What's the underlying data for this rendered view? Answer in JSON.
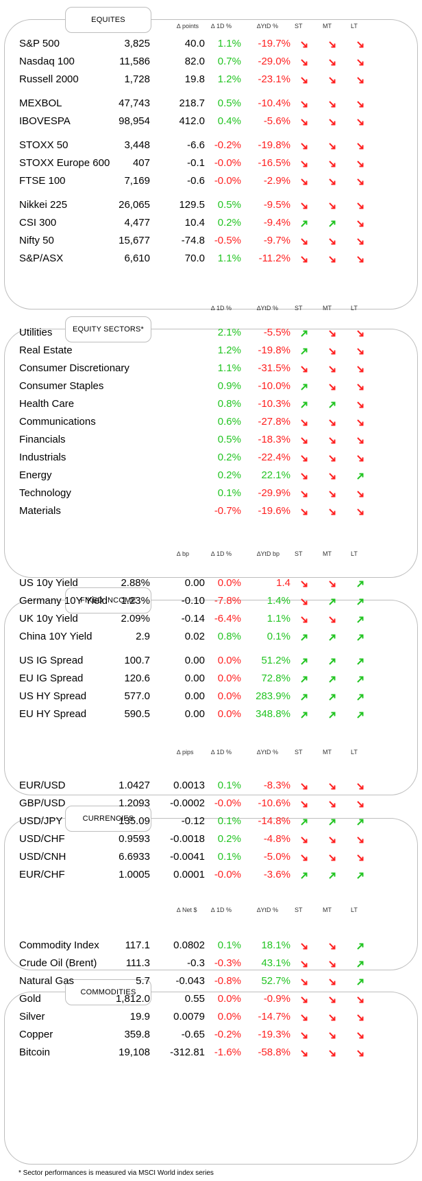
{
  "colors": {
    "up": "#22c422",
    "down": "#ff2020"
  },
  "sections": [
    {
      "id": "equities",
      "title": "EQUITES",
      "has_value": true,
      "headers": {
        "chg": "∆ points",
        "pct": "∆ 1D %",
        "ytd": "∆YtD %",
        "st": "ST",
        "mt": "MT",
        "lt": "LT"
      },
      "rows": [
        {
          "name": "S&P 500",
          "value": "3,825",
          "chg": "40.0",
          "pct": "1.1%",
          "ytd": "-19.7%",
          "st": "down",
          "mt": "down",
          "lt": "down"
        },
        {
          "name": "Nasdaq 100",
          "value": "11,586",
          "chg": "82.0",
          "pct": "0.7%",
          "ytd": "-29.0%",
          "st": "down",
          "mt": "down",
          "lt": "down"
        },
        {
          "name": "Russell 2000",
          "value": "1,728",
          "chg": "19.8",
          "pct": "1.2%",
          "ytd": "-23.1%",
          "st": "down",
          "mt": "down",
          "lt": "down"
        },
        {
          "name": "MEXBOL",
          "value": "47,743",
          "chg": "218.7",
          "pct": "0.5%",
          "ytd": "-10.4%",
          "st": "down",
          "mt": "down",
          "lt": "down"
        },
        {
          "name": "IBOVESPA",
          "value": "98,954",
          "chg": "412.0",
          "pct": "0.4%",
          "ytd": "-5.6%",
          "st": "down",
          "mt": "down",
          "lt": "down"
        },
        {
          "name": "STOXX 50",
          "value": "3,448",
          "chg": "-6.6",
          "pct": "-0.2%",
          "ytd": "-19.8%",
          "st": "down",
          "mt": "down",
          "lt": "down"
        },
        {
          "name": "STOXX Europe 600",
          "value": "407",
          "chg": "-0.1",
          "pct": "-0.0%",
          "ytd": "-16.5%",
          "st": "down",
          "mt": "down",
          "lt": "down"
        },
        {
          "name": "FTSE 100",
          "value": "7,169",
          "chg": "-0.6",
          "pct": "-0.0%",
          "ytd": "-2.9%",
          "st": "down",
          "mt": "down",
          "lt": "down"
        },
        {
          "name": "Nikkei 225",
          "value": "26,065",
          "chg": "129.5",
          "pct": "0.5%",
          "ytd": "-9.5%",
          "st": "down",
          "mt": "down",
          "lt": "down"
        },
        {
          "name": "CSI 300",
          "value": "4,477",
          "chg": "10.4",
          "pct": "0.2%",
          "ytd": "-9.4%",
          "st": "up",
          "mt": "up",
          "lt": "down"
        },
        {
          "name": "Nifty  50",
          "value": "15,677",
          "chg": "-74.8",
          "pct": "-0.5%",
          "ytd": "-9.7%",
          "st": "down",
          "mt": "down",
          "lt": "down"
        },
        {
          "name": "S&P/ASX",
          "value": "6,610",
          "chg": "70.0",
          "pct": "1.1%",
          "ytd": "-11.2%",
          "st": "down",
          "mt": "down",
          "lt": "down"
        }
      ]
    },
    {
      "id": "sectors",
      "title": "EQUITY  SECTORS*",
      "has_value": false,
      "headers": {
        "chg": "",
        "pct": "∆ 1D %",
        "ytd": "∆YtD %",
        "st": "ST",
        "mt": "MT",
        "lt": "LT"
      },
      "rows": [
        {
          "name": "Utilities",
          "pct": "2.1%",
          "ytd": "-5.5%",
          "st": "up",
          "mt": "down",
          "lt": "down"
        },
        {
          "name": "Real Estate",
          "pct": "1.2%",
          "ytd": "-19.8%",
          "st": "up",
          "mt": "down",
          "lt": "down"
        },
        {
          "name": "Consumer Discretionary",
          "pct": "1.1%",
          "ytd": "-31.5%",
          "st": "down",
          "mt": "down",
          "lt": "down"
        },
        {
          "name": "Consumer Staples",
          "pct": "0.9%",
          "ytd": "-10.0%",
          "st": "up",
          "mt": "down",
          "lt": "down"
        },
        {
          "name": "Health Care",
          "pct": "0.8%",
          "ytd": "-10.3%",
          "st": "up",
          "mt": "up",
          "lt": "down"
        },
        {
          "name": "Communications",
          "pct": "0.6%",
          "ytd": "-27.8%",
          "st": "down",
          "mt": "down",
          "lt": "down"
        },
        {
          "name": "Financials",
          "pct": "0.5%",
          "ytd": "-18.3%",
          "st": "down",
          "mt": "down",
          "lt": "down"
        },
        {
          "name": "Industrials",
          "pct": "0.2%",
          "ytd": "-22.4%",
          "st": "down",
          "mt": "down",
          "lt": "down"
        },
        {
          "name": "Energy",
          "pct": "0.2%",
          "ytd": "22.1%",
          "st": "down",
          "mt": "down",
          "lt": "up"
        },
        {
          "name": "Technology",
          "pct": "0.1%",
          "ytd": "-29.9%",
          "st": "down",
          "mt": "down",
          "lt": "down"
        },
        {
          "name": "Materials",
          "pct": "-0.7%",
          "ytd": "-19.6%",
          "st": "down",
          "mt": "down",
          "lt": "down"
        }
      ]
    },
    {
      "id": "fixed",
      "title": "FIXED  INCOME",
      "has_value": true,
      "headers": {
        "chg": "∆ bp",
        "pct": "∆ 1D %",
        "ytd": "∆YtD bp",
        "st": "ST",
        "mt": "MT",
        "lt": "LT"
      },
      "rows": [
        {
          "name": "US 10y Yield",
          "value": "2.88%",
          "chg": "0.00",
          "pct": "0.0%",
          "ytd": "1.4",
          "st": "down",
          "mt": "down",
          "lt": "up"
        },
        {
          "name": "Germany 10Y Yield",
          "value": "1.23%",
          "chg": "-0.10",
          "pct": "-7.8%",
          "ytd": "1.4%",
          "st": "down",
          "mt": "up",
          "lt": "up"
        },
        {
          "name": "UK 10y Yield",
          "value": "2.09%",
          "chg": "-0.14",
          "pct": "-6.4%",
          "ytd": "1.1%",
          "st": "down",
          "mt": "down",
          "lt": "up"
        },
        {
          "name": "China 10Y Yield",
          "value": "2.9",
          "chg": "0.02",
          "pct": "0.8%",
          "ytd": "0.1%",
          "st": "up",
          "mt": "up",
          "lt": "up"
        },
        {
          "name": "US IG Spread",
          "value": "100.7",
          "chg": "0.00",
          "pct": "0.0%",
          "ytd": "51.2%",
          "st": "up",
          "mt": "up",
          "lt": "up"
        },
        {
          "name": "EU IG Spread",
          "value": "120.6",
          "chg": "0.00",
          "pct": "0.0%",
          "ytd": "72.8%",
          "st": "up",
          "mt": "up",
          "lt": "up"
        },
        {
          "name": "US HY Spread",
          "value": "577.0",
          "chg": "0.00",
          "pct": "0.0%",
          "ytd": "283.9%",
          "st": "up",
          "mt": "up",
          "lt": "up"
        },
        {
          "name": "EU HY Spread",
          "value": "590.5",
          "chg": "0.00",
          "pct": "0.0%",
          "ytd": "348.8%",
          "st": "up",
          "mt": "up",
          "lt": "up"
        }
      ]
    },
    {
      "id": "currencies",
      "title": "CURRENCIES",
      "has_value": true,
      "headers": {
        "chg": "∆ pips",
        "pct": "∆ 1D %",
        "ytd": "∆YtD %",
        "st": "ST",
        "mt": "MT",
        "lt": "LT"
      },
      "rows": [
        {
          "name": "EUR/USD",
          "value": "1.0427",
          "chg": "0.0013",
          "pct": "0.1%",
          "ytd": "-8.3%",
          "st": "down",
          "mt": "down",
          "lt": "down"
        },
        {
          "name": "GBP/USD",
          "value": "1.2093",
          "chg": "-0.0002",
          "pct": "-0.0%",
          "ytd": "-10.6%",
          "st": "down",
          "mt": "down",
          "lt": "down"
        },
        {
          "name": "USD/JPY",
          "value": "135.09",
          "chg": "-0.12",
          "pct": "0.1%",
          "ytd": "-14.8%",
          "st": "up",
          "mt": "up",
          "lt": "up"
        },
        {
          "name": "USD/CHF",
          "value": "0.9593",
          "chg": "-0.0018",
          "pct": "0.2%",
          "ytd": "-4.8%",
          "st": "down",
          "mt": "down",
          "lt": "down"
        },
        {
          "name": "USD/CNH",
          "value": "6.6933",
          "chg": "-0.0041",
          "pct": "0.1%",
          "ytd": "-5.0%",
          "st": "down",
          "mt": "down",
          "lt": "down"
        },
        {
          "name": "EUR/CHF",
          "value": "1.0005",
          "chg": "0.0001",
          "pct": "-0.0%",
          "ytd": "-3.6%",
          "st": "up",
          "mt": "up",
          "lt": "up"
        }
      ]
    },
    {
      "id": "commodities",
      "title": "COMMODITIES",
      "has_value": true,
      "headers": {
        "chg": "∆ Net $",
        "pct": "∆ 1D %",
        "ytd": "∆YtD %",
        "st": "ST",
        "mt": "MT",
        "lt": "LT"
      },
      "rows": [
        {
          "name": "Commodity Index",
          "value": "117.1",
          "chg": "0.0802",
          "pct": "0.1%",
          "ytd": "18.1%",
          "st": "down",
          "mt": "down",
          "lt": "up"
        },
        {
          "name": "Crude Oil (Brent)",
          "value": "111.3",
          "chg": "-0.3",
          "pct": "-0.3%",
          "ytd": "43.1%",
          "st": "down",
          "mt": "down",
          "lt": "up"
        },
        {
          "name": "Natural Gas",
          "value": "5.7",
          "chg": "-0.043",
          "pct": "-0.8%",
          "ytd": "52.7%",
          "st": "down",
          "mt": "down",
          "lt": "up"
        },
        {
          "name": "Gold",
          "value": "1,812.0",
          "chg": "0.55",
          "pct": "0.0%",
          "ytd": "-0.9%",
          "st": "down",
          "mt": "down",
          "lt": "down"
        },
        {
          "name": "Silver",
          "value": "19.9",
          "chg": "0.0079",
          "pct": "0.0%",
          "ytd": "-14.7%",
          "st": "down",
          "mt": "down",
          "lt": "down"
        },
        {
          "name": "Copper",
          "value": "359.8",
          "chg": "-0.65",
          "pct": "-0.2%",
          "ytd": "-19.3%",
          "st": "down",
          "mt": "down",
          "lt": "down"
        },
        {
          "name": "Bitcoin",
          "value": "19,108",
          "chg": "-312.81",
          "pct": "-1.6%",
          "ytd": "-58.8%",
          "st": "down",
          "mt": "down",
          "lt": "down"
        }
      ]
    }
  ],
  "footnote": "* Sector performances is measured via MSCI World index series"
}
